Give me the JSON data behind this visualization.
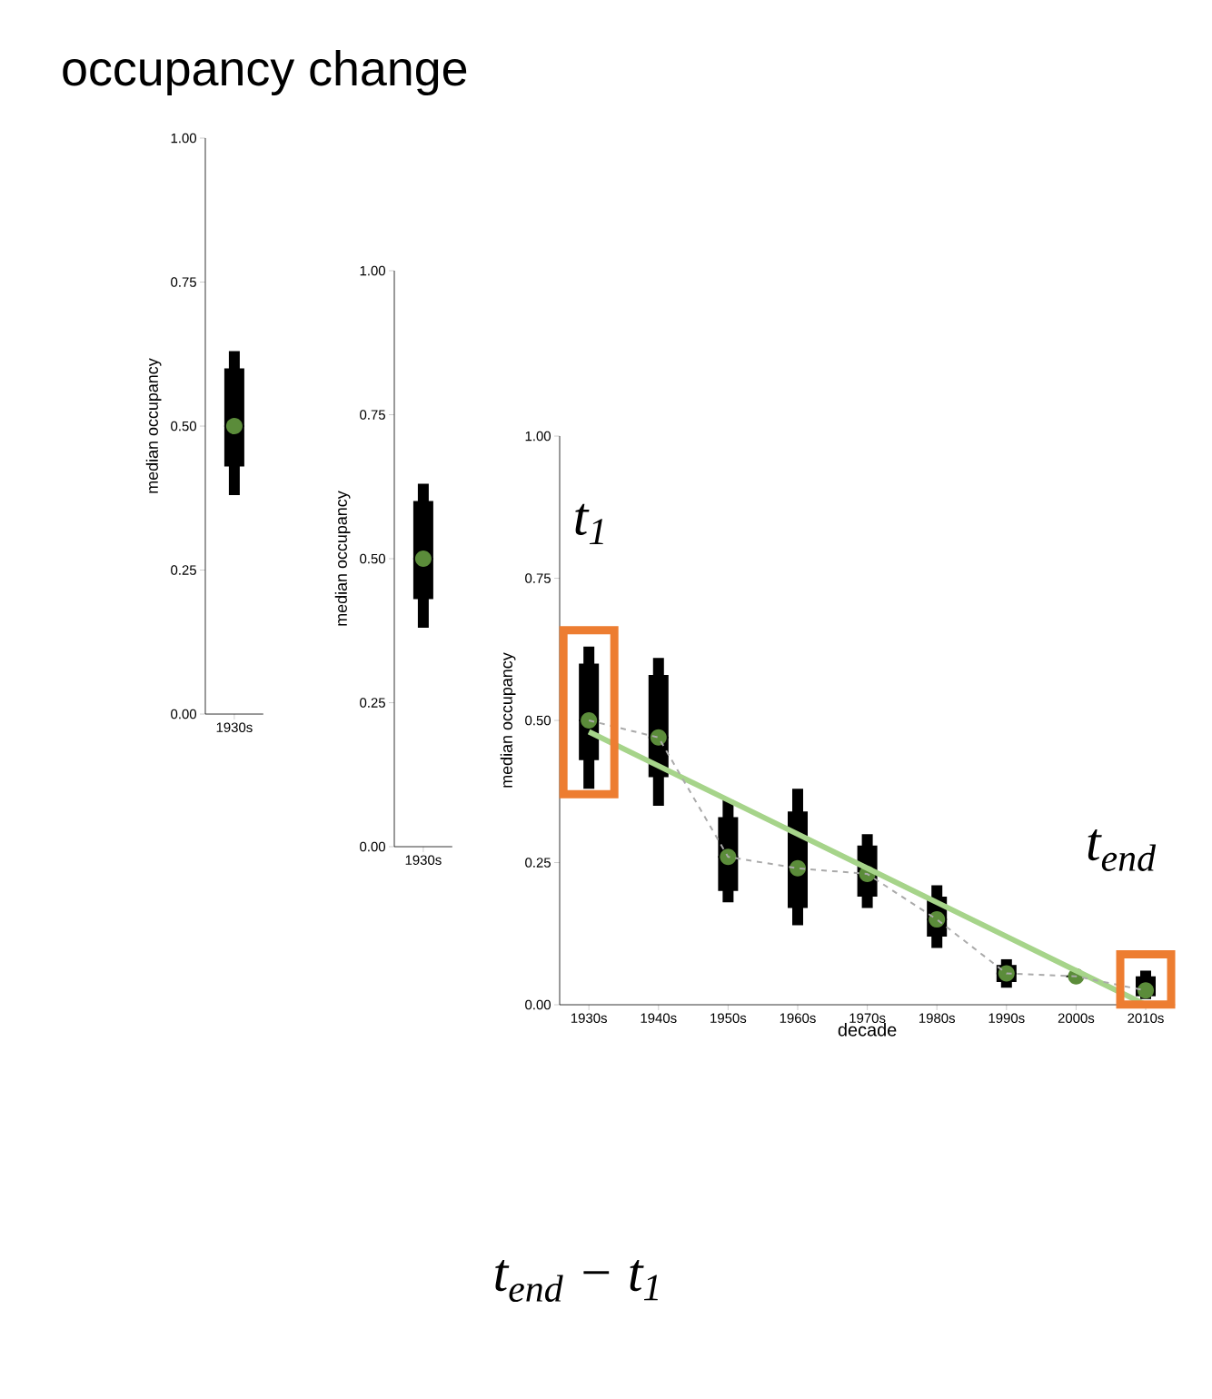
{
  "chart_data": [
    {
      "type": "box",
      "title": "occupancy change",
      "ylabel": "median occupancy",
      "categories": [
        "1930s"
      ],
      "ylim": [
        0,
        1
      ],
      "yticks": [
        {
          "value": 0,
          "label": "0.00"
        },
        {
          "value": 0.25,
          "label": "0.25"
        },
        {
          "value": 0.5,
          "label": "0.50"
        },
        {
          "value": 0.75,
          "label": "0.75"
        },
        {
          "value": 1,
          "label": "1.00"
        }
      ],
      "series": [
        {
          "type": "box",
          "color": "#000000",
          "boxes": [
            {
              "low": 0.38,
              "q1": 0.43,
              "median": 0.5,
              "q3": 0.6,
              "high": 0.63
            }
          ]
        },
        {
          "type": "scatter",
          "color": "#5b8c3a",
          "marker": "circle",
          "values": [
            0.5
          ]
        }
      ]
    },
    {
      "type": "box",
      "ylabel": "median occupancy",
      "categories": [
        "1930s"
      ],
      "ylim": [
        0,
        1
      ],
      "yticks": [
        {
          "value": 0,
          "label": "0.00"
        },
        {
          "value": 0.25,
          "label": "0.25"
        },
        {
          "value": 0.5,
          "label": "0.50"
        },
        {
          "value": 0.75,
          "label": "0.75"
        },
        {
          "value": 1,
          "label": "1.00"
        }
      ],
      "series": [
        {
          "type": "box",
          "color": "#000000",
          "boxes": [
            {
              "low": 0.38,
              "q1": 0.43,
              "median": 0.5,
              "q3": 0.6,
              "high": 0.63
            }
          ]
        },
        {
          "type": "scatter",
          "color": "#5b8c3a",
          "marker": "circle",
          "values": [
            0.5
          ]
        }
      ]
    },
    {
      "type": "box",
      "xlabel": "decade",
      "ylabel": "median occupancy",
      "categories": [
        "1930s",
        "1940s",
        "1950s",
        "1960s",
        "1970s",
        "1980s",
        "1990s",
        "2000s",
        "2010s"
      ],
      "ylim": [
        0,
        1
      ],
      "yticks": [
        {
          "value": 0,
          "label": "0.00"
        },
        {
          "value": 0.25,
          "label": "0.25"
        },
        {
          "value": 0.5,
          "label": "0.50"
        },
        {
          "value": 0.75,
          "label": "0.75"
        },
        {
          "value": 1,
          "label": "1.00"
        }
      ],
      "annotations": [
        "t$_{1}$",
        "t$_{end}$",
        "t$_{end}$ − t$_{1}$"
      ],
      "series": [
        {
          "type": "line",
          "color": "#a6d48a",
          "line_style": "solid",
          "values": [
            0.48,
            0.42,
            0.36,
            0.3,
            0.24,
            0.18,
            0.12,
            0.06,
            0.0
          ]
        },
        {
          "type": "line",
          "color": "#aaaaaa",
          "line_style": "dashed",
          "values": [
            0.5,
            0.47,
            0.26,
            0.24,
            0.23,
            0.15,
            0.055,
            0.05,
            0.025
          ]
        },
        {
          "type": "box",
          "color": "#000000",
          "boxes": [
            {
              "low": 0.38,
              "q1": 0.43,
              "median": 0.5,
              "q3": 0.6,
              "high": 0.63
            },
            {
              "low": 0.35,
              "q1": 0.4,
              "median": 0.47,
              "q3": 0.58,
              "high": 0.61
            },
            {
              "low": 0.18,
              "q1": 0.2,
              "median": 0.26,
              "q3": 0.33,
              "high": 0.36
            },
            {
              "low": 0.14,
              "q1": 0.17,
              "median": 0.24,
              "q3": 0.34,
              "high": 0.38
            },
            {
              "low": 0.17,
              "q1": 0.19,
              "median": 0.23,
              "q3": 0.28,
              "high": 0.3
            },
            {
              "low": 0.1,
              "q1": 0.12,
              "median": 0.15,
              "q3": 0.19,
              "high": 0.21
            },
            {
              "low": 0.03,
              "q1": 0.04,
              "median": 0.055,
              "q3": 0.07,
              "high": 0.08
            },
            {
              "low": 0.05,
              "q1": 0.05,
              "median": 0.05,
              "q3": 0.05,
              "high": 0.05
            },
            {
              "low": 0.01,
              "q1": 0.015,
              "median": 0.025,
              "q3": 0.05,
              "high": 0.06
            }
          ]
        },
        {
          "type": "scatter",
          "color": "#5b8c3a",
          "marker": "circle",
          "values": [
            0.5,
            0.47,
            0.26,
            0.24,
            0.23,
            0.15,
            0.055,
            0.05,
            0.025
          ]
        }
      ]
    }
  ]
}
